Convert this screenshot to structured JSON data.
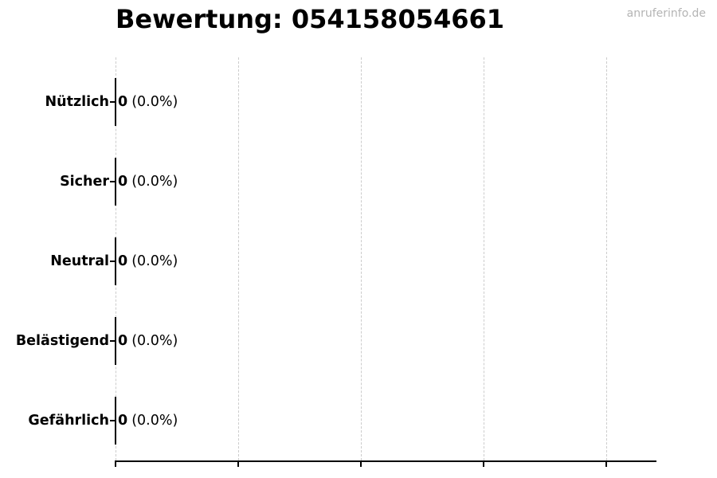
{
  "watermark": "anruferinfo.de",
  "chart_data": {
    "type": "bar",
    "orientation": "horizontal",
    "title": "Bewertung: 054158054661",
    "categories": [
      "Nützlich",
      "Sicher",
      "Neutral",
      "Belästigend",
      "Gefährlich"
    ],
    "values": [
      0,
      0,
      0,
      0,
      0
    ],
    "percent_labels": [
      "(0.0%)",
      "(0.0%)",
      "(0.0%)",
      "(0.0%)",
      "(0.0%)"
    ],
    "xlabel": "",
    "ylabel": "",
    "xlim": [
      0,
      1.1
    ],
    "xticks": [
      0,
      0.25,
      0.5,
      0.75,
      1.0
    ],
    "x_tick_labels": [],
    "grid": "vertical-dashed",
    "legend": "none",
    "gridline_color": "#cccccc",
    "bar_color": "#000000",
    "text_color": "#000000",
    "watermark_color": "#b4b4b4"
  }
}
